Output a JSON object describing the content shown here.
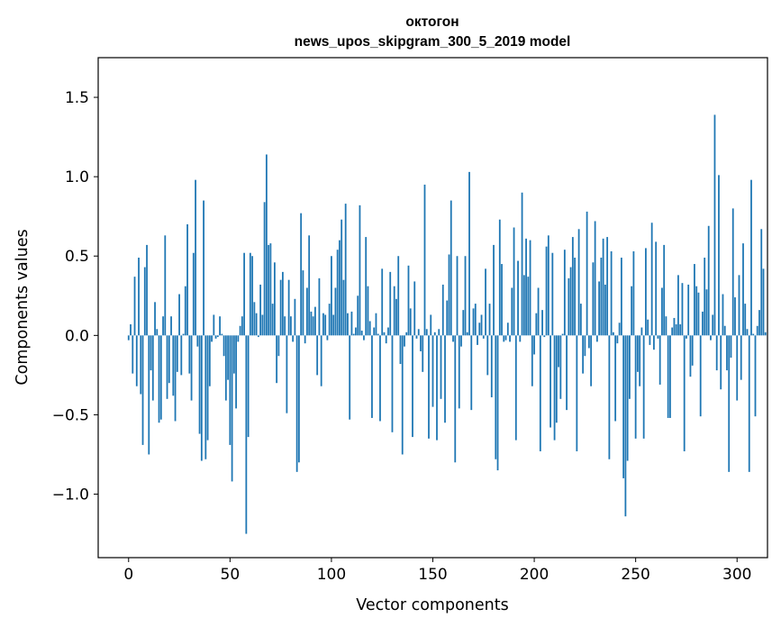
{
  "chart_data": {
    "type": "bar",
    "title": "октогон",
    "subtitle": "news_upos_skipgram_300_5_2019 model",
    "xlabel": "Vector components",
    "ylabel": "Components values",
    "xlim": [
      -15,
      315
    ],
    "ylim": [
      -1.4,
      1.75
    ],
    "xticks": [
      0,
      50,
      100,
      150,
      200,
      250,
      300
    ],
    "xtick_labels": [
      "0",
      "50",
      "100",
      "150",
      "200",
      "250",
      "300"
    ],
    "yticks": [
      -1.0,
      -0.5,
      0.0,
      0.5,
      1.0,
      1.5
    ],
    "ytick_labels": [
      "−1.0",
      "−0.5",
      "0.0",
      "0.5",
      "1.0",
      "1.5"
    ],
    "grid": false,
    "bar_color": "#1f77b4",
    "values": [
      -0.03,
      0.07,
      -0.24,
      0.37,
      -0.32,
      0.49,
      -0.37,
      -0.69,
      0.43,
      0.57,
      -0.75,
      -0.22,
      -0.41,
      0.21,
      0.04,
      -0.55,
      -0.53,
      0.12,
      0.63,
      -0.4,
      -0.3,
      0.12,
      -0.38,
      -0.54,
      -0.23,
      0.26,
      -0.25,
      0.01,
      0.31,
      0.7,
      -0.24,
      -0.41,
      0.52,
      0.98,
      -0.07,
      -0.62,
      -0.79,
      0.85,
      -0.78,
      -0.66,
      -0.32,
      -0.04,
      0.13,
      -0.02,
      -0.01,
      0.12,
      0.01,
      -0.13,
      -0.41,
      -0.28,
      -0.69,
      -0.92,
      -0.24,
      -0.46,
      -0.04,
      0.06,
      0.12,
      0.52,
      -1.25,
      -0.64,
      0.52,
      0.5,
      0.21,
      0.14,
      -0.01,
      0.32,
      0.13,
      0.84,
      1.14,
      0.57,
      0.58,
      0.2,
      0.46,
      -0.3,
      -0.13,
      0.35,
      0.4,
      0.12,
      -0.49,
      0.35,
      0.12,
      -0.04,
      0.23,
      -0.86,
      -0.8,
      0.77,
      0.41,
      -0.05,
      0.3,
      0.63,
      0.15,
      0.12,
      0.18,
      -0.25,
      0.36,
      -0.32,
      0.14,
      0.13,
      -0.03,
      0.2,
      0.5,
      0.13,
      0.3,
      0.54,
      0.6,
      0.73,
      0.35,
      0.83,
      0.14,
      -0.53,
      0.15,
      0.01,
      0.05,
      0.25,
      0.82,
      0.03,
      -0.03,
      0.62,
      0.31,
      0.09,
      -0.52,
      0.05,
      0.14,
      0.01,
      -0.54,
      0.42,
      0.02,
      -0.05,
      0.05,
      0.4,
      -0.61,
      0.31,
      0.23,
      0.5,
      -0.18,
      -0.75,
      -0.07,
      0.02,
      0.44,
      0.17,
      -0.64,
      0.34,
      -0.02,
      0.04,
      -0.1,
      -0.23,
      0.95,
      0.04,
      -0.65,
      0.13,
      -0.45,
      0.02,
      -0.66,
      0.04,
      -0.4,
      0.32,
      -0.55,
      0.22,
      0.51,
      0.85,
      -0.04,
      -0.8,
      0.5,
      -0.46,
      -0.07,
      0.16,
      0.5,
      0.02,
      1.03,
      -0.47,
      0.17,
      0.2,
      -0.06,
      0.08,
      0.13,
      -0.02,
      0.42,
      -0.25,
      0.2,
      -0.39,
      0.57,
      -0.78,
      -0.85,
      0.73,
      0.45,
      -0.04,
      -0.03,
      0.08,
      -0.04,
      0.3,
      0.68,
      -0.66,
      0.47,
      -0.04,
      0.9,
      0.38,
      0.61,
      0.37,
      0.6,
      -0.32,
      -0.12,
      0.14,
      0.3,
      -0.73,
      0.16,
      -0.01,
      0.56,
      0.63,
      -0.58,
      0.52,
      -0.66,
      -0.55,
      -0.2,
      -0.4,
      0.01,
      0.54,
      -0.47,
      0.36,
      0.43,
      0.62,
      0.49,
      -0.73,
      0.67,
      0.2,
      -0.24,
      -0.13,
      0.78,
      -0.08,
      -0.32,
      0.46,
      0.72,
      -0.04,
      0.34,
      0.49,
      0.61,
      0.32,
      0.62,
      -0.78,
      0.53,
      0.02,
      -0.54,
      -0.05,
      0.08,
      0.49,
      -0.9,
      -1.14,
      -0.79,
      -0.4,
      0.31,
      0.53,
      -0.65,
      -0.23,
      -0.32,
      0.05,
      -0.65,
      0.55,
      0.1,
      -0.06,
      0.71,
      -0.09,
      0.59,
      -0.02,
      -0.31,
      0.3,
      0.57,
      0.12,
      -0.52,
      -0.52,
      0.05,
      0.11,
      0.07,
      0.38,
      0.07,
      0.33,
      -0.73,
      -0.02,
      0.32,
      -0.26,
      -0.19,
      0.45,
      0.31,
      0.27,
      -0.51,
      0.15,
      0.49,
      0.29,
      0.69,
      -0.03,
      0.13,
      1.39,
      -0.22,
      1.01,
      -0.34,
      0.26,
      0.06,
      -0.22,
      -0.86,
      -0.14,
      0.8,
      0.24,
      -0.41,
      0.38,
      -0.28,
      0.58,
      0.2,
      0.04,
      -0.86,
      0.98,
      0.01,
      -0.51,
      0.06,
      0.16,
      0.67,
      0.42,
      0.02
    ]
  }
}
